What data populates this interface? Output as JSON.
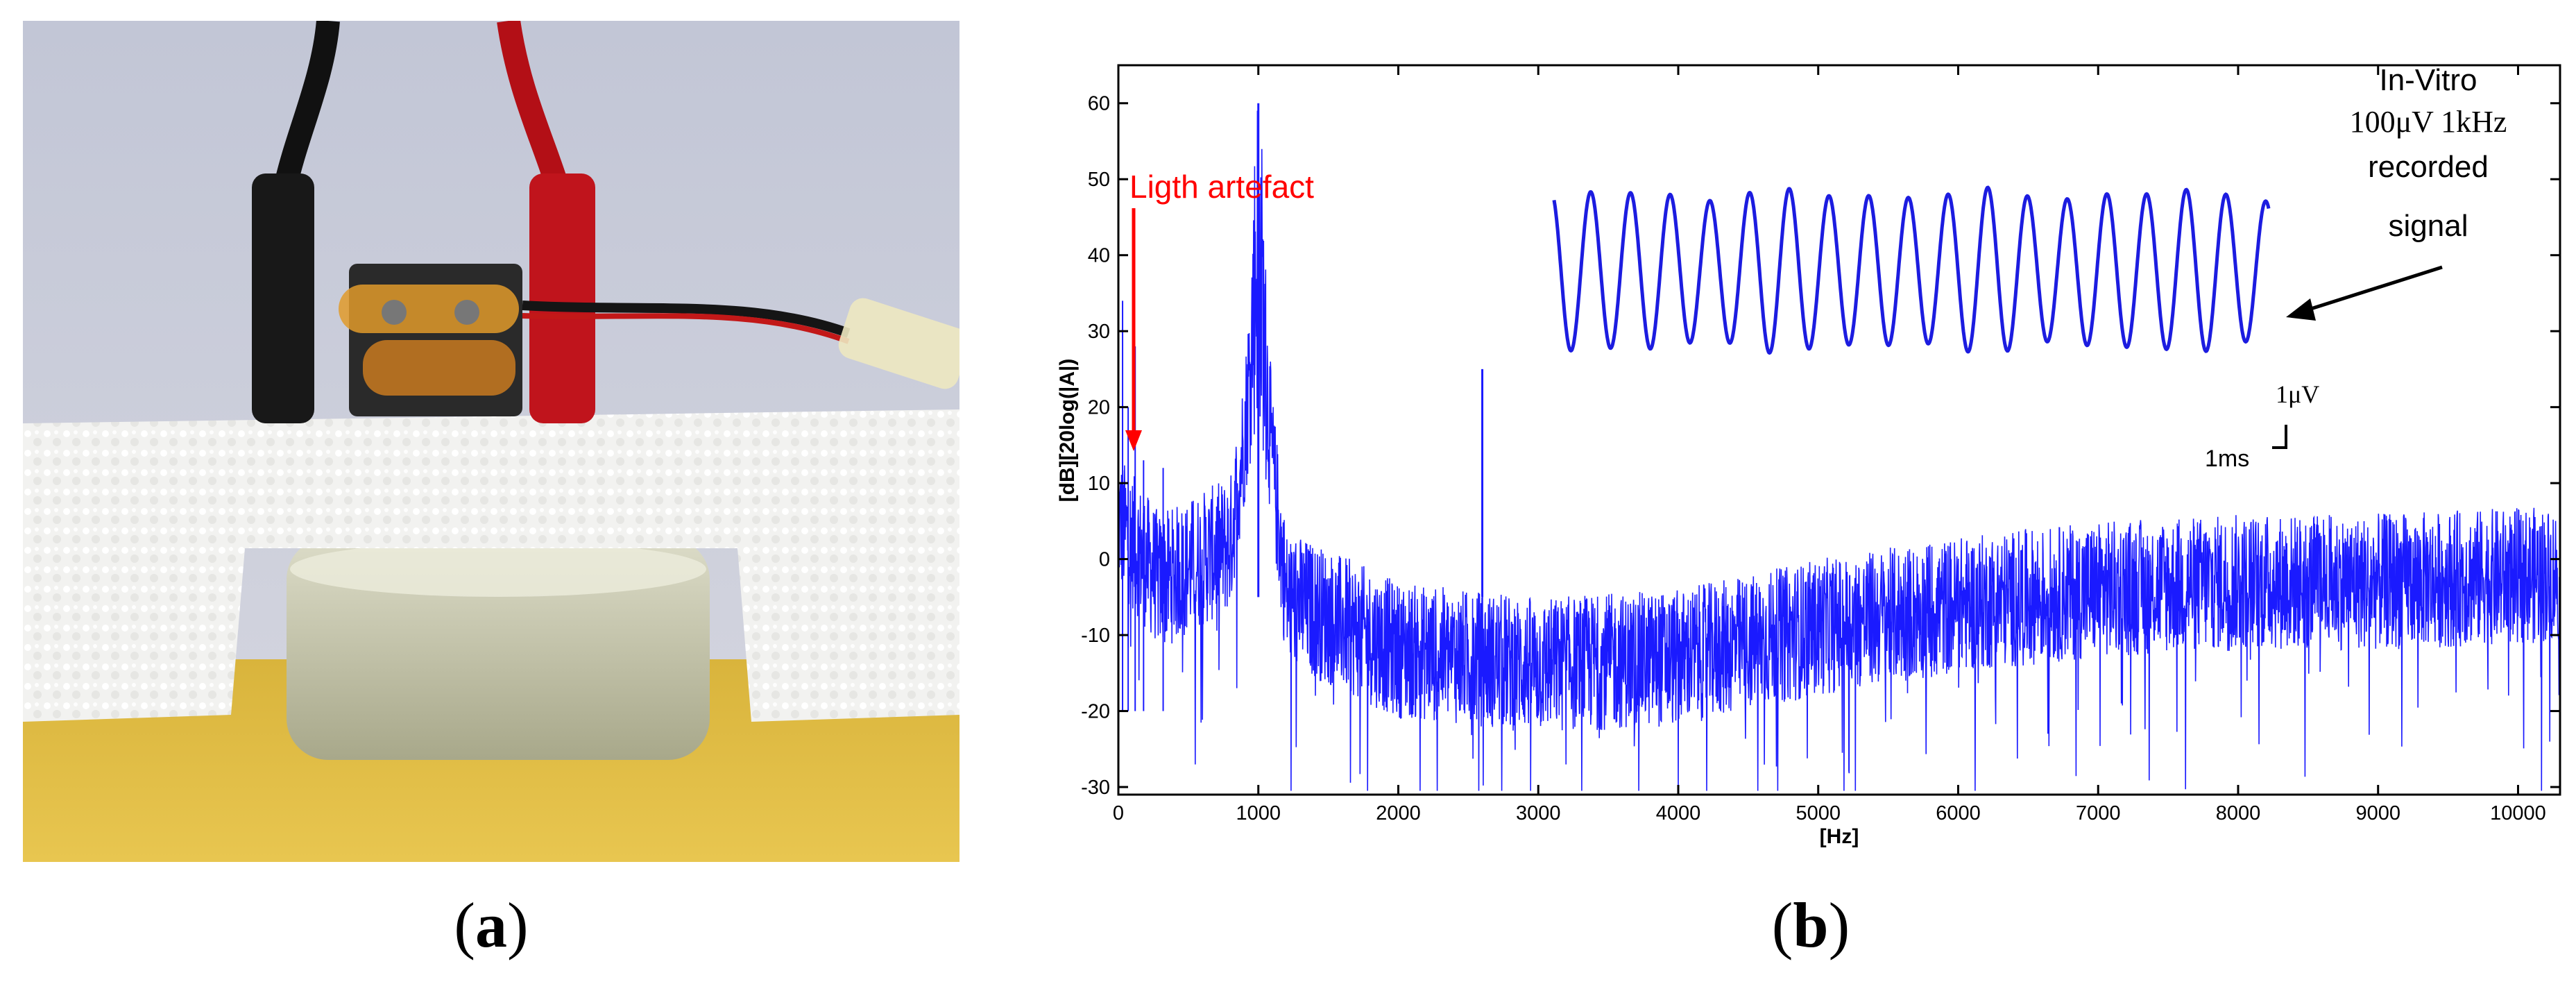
{
  "figure": {
    "label_a": "a",
    "label_b": "b",
    "photo_description_name": "in-vitro-setup-photo"
  },
  "colors": {
    "spectrum": "#1a1aff",
    "inset": "#1c1ce0",
    "annotation": "#ff0000",
    "axes": "#000000"
  },
  "chart_data": {
    "type": "line",
    "xlabel": "[Hz]",
    "ylabel": "[dB][20log(|A|)",
    "xlim": [
      0,
      10300
    ],
    "ylim": [
      -31,
      65
    ],
    "xticks": [
      0,
      1000,
      2000,
      3000,
      4000,
      5000,
      6000,
      7000,
      8000,
      9000,
      10000
    ],
    "yticks": [
      -30,
      -20,
      -10,
      0,
      10,
      20,
      30,
      40,
      50,
      60
    ],
    "grid": false,
    "series": [
      {
        "name": "spectrum",
        "description": "noisy magnitude spectrum",
        "peaks": [
          {
            "x": 1000,
            "y": 60
          },
          {
            "x": 2600,
            "y": 25
          }
        ],
        "baseline_points": [
          {
            "x": 0,
            "y": 5
          },
          {
            "x": 300,
            "y": -3
          },
          {
            "x": 800,
            "y": 2
          },
          {
            "x": 1000,
            "y": 30
          },
          {
            "x": 1200,
            "y": -5
          },
          {
            "x": 2000,
            "y": -12
          },
          {
            "x": 3000,
            "y": -14
          },
          {
            "x": 4000,
            "y": -13
          },
          {
            "x": 5000,
            "y": -9
          },
          {
            "x": 6000,
            "y": -6
          },
          {
            "x": 7000,
            "y": -4
          },
          {
            "x": 8000,
            "y": -3
          },
          {
            "x": 9000,
            "y": -3
          },
          {
            "x": 10300,
            "y": -2
          }
        ]
      }
    ],
    "inset": {
      "description": "time-domain recorded sine signal",
      "frequency_khz": 1,
      "cycles": 18,
      "scalebar_x": "1ms",
      "scalebar_y": "1μV"
    },
    "annotations": {
      "artifact_label": "Ligth artefact",
      "artifact_x": 120,
      "inset_title_line1": "In-Vitro",
      "inset_title_line2": "100μV 1kHz",
      "inset_title_line3": "recorded",
      "inset_title_line4": "signal"
    }
  }
}
